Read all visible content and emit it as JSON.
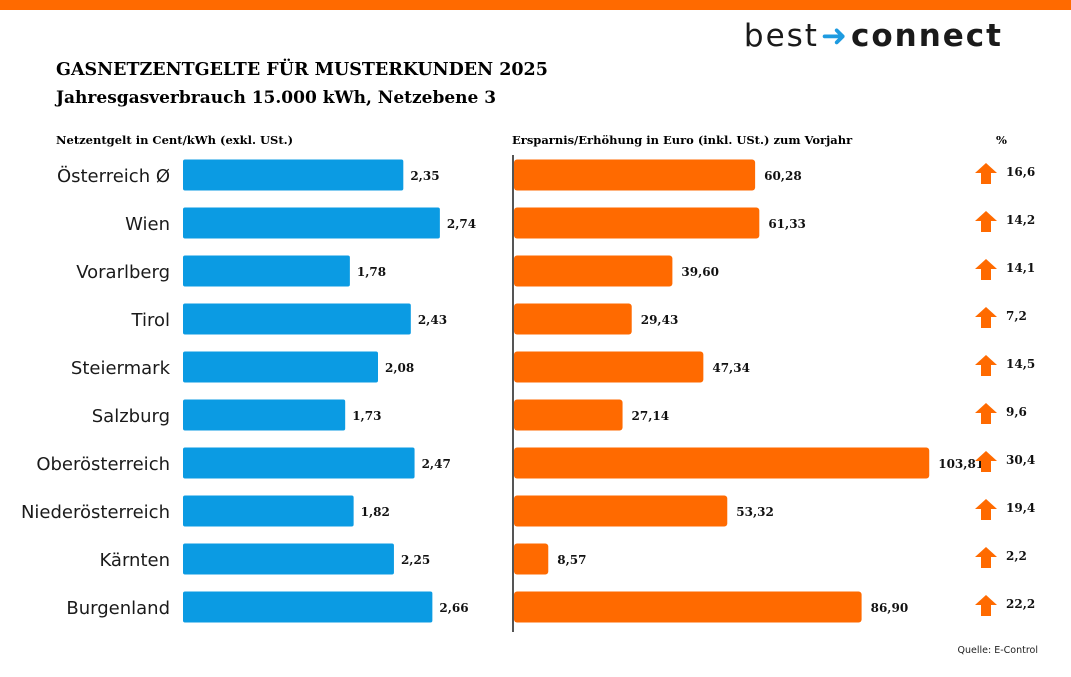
{
  "brand": {
    "name_left": "best",
    "arrow": "➜",
    "name_right": "connect",
    "accent_color": "#FF6A00",
    "arrow_color": "#1E9BE0"
  },
  "header": {
    "title": "GASNETZENTGELTE FÜR MUSTERKUNDEN 2025",
    "subtitle": "Jahresgasverbrauch 15.000 kWh, Netzebene 3"
  },
  "columns": {
    "left": "Netzentgelt in Cent/kWh (exkl. USt.)",
    "right": "Ersparnis/Erhöhung in Euro (inkl. USt.) zum Vorjahr",
    "percent": "%"
  },
  "source": "Quelle: E-Control",
  "chart_data": [
    {
      "type": "bar",
      "orientation": "horizontal",
      "categories": [
        "Österreich Ø",
        "Wien",
        "Vorarlberg",
        "Tirol",
        "Steiermark",
        "Salzburg",
        "Oberösterreich",
        "Niederösterreich",
        "Kärnten",
        "Burgenland"
      ],
      "values": [
        2.35,
        2.74,
        1.78,
        2.43,
        2.08,
        1.73,
        2.47,
        1.82,
        2.25,
        2.66
      ],
      "labels": [
        "2,35",
        "2,74",
        "1,78",
        "2,43",
        "2,08",
        "1,73",
        "2,47",
        "1,82",
        "2,25",
        "2,66"
      ],
      "title": "Netzentgelt in Cent/kWh (exkl. USt.)",
      "xlim": [
        0,
        3.2
      ],
      "color": "#0B9BE3"
    },
    {
      "type": "bar",
      "orientation": "horizontal",
      "categories": [
        "Österreich Ø",
        "Wien",
        "Vorarlberg",
        "Tirol",
        "Steiermark",
        "Salzburg",
        "Oberösterreich",
        "Niederösterreich",
        "Kärnten",
        "Burgenland"
      ],
      "values": [
        60.28,
        61.33,
        39.6,
        29.43,
        47.34,
        27.14,
        103.81,
        53.32,
        8.57,
        86.9
      ],
      "labels": [
        "60,28",
        "61,33",
        "39,60",
        "29,43",
        "47,34",
        "27,14",
        "103,81",
        "53,32",
        "8,57",
        "86,90"
      ],
      "title": "Ersparnis/Erhöhung in Euro (inkl. USt.) zum Vorjahr",
      "xlim": [
        0,
        115
      ],
      "color": "#FF6A00",
      "percent": {
        "header": "%",
        "values": [
          16.6,
          14.2,
          14.1,
          7.2,
          14.5,
          9.6,
          30.4,
          19.4,
          2.2,
          22.2
        ],
        "labels": [
          "16,6",
          "14,2",
          "14,1",
          "7,2",
          "14,5",
          "9,6",
          "30,4",
          "19,4",
          "2,2",
          "22,2"
        ],
        "direction": "up",
        "icon": "arrow-up-icon"
      }
    }
  ]
}
